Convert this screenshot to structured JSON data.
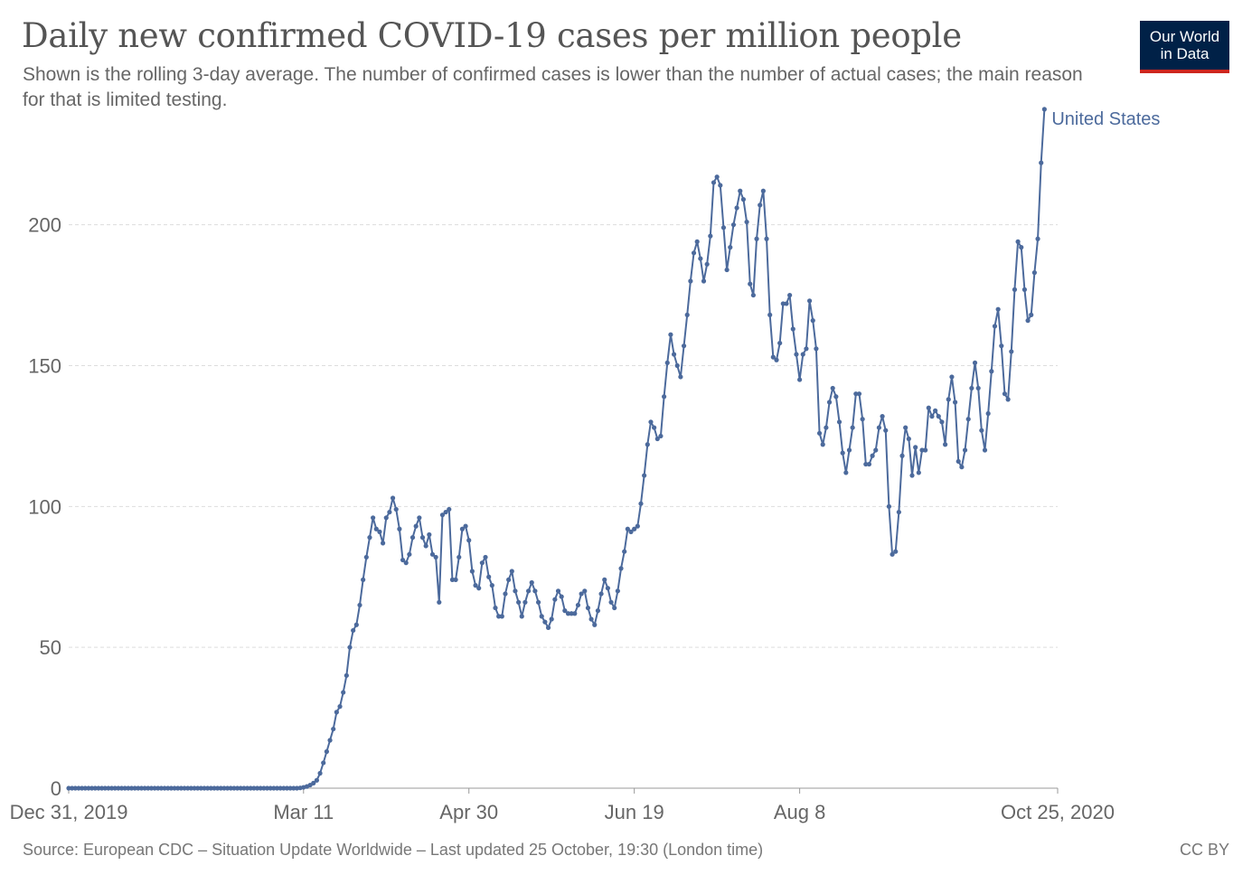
{
  "header": {
    "title": "Daily new confirmed COVID-19 cases per million people",
    "subtitle": "Shown is the rolling 3-day average. The number of confirmed cases is lower than the number of actual cases; the main reason for that is limited testing.",
    "logo_text": "Our World in Data"
  },
  "footer": {
    "source": "Source: European CDC – Situation Update Worldwide – Last updated 25 October, 19:30 (London time)",
    "license": "CC BY"
  },
  "colors": {
    "series": "#4c6a9c",
    "grid": "#dddddd",
    "axis_text": "#666666",
    "logo_bg": "#002147",
    "logo_accent": "#ce261e"
  },
  "chart_data": {
    "type": "line",
    "title": "Daily new confirmed COVID-19 cases per million people",
    "xlabel": "",
    "ylabel": "",
    "x_start": "2019-12-31",
    "x_end": "2020-10-25",
    "xlim": [
      "2019-12-31",
      "2020-10-25"
    ],
    "ylim": [
      0,
      240
    ],
    "y_ticks": [
      0,
      50,
      100,
      150,
      200
    ],
    "x_ticks": [
      {
        "date": "2019-12-31",
        "label": "Dec 31, 2019"
      },
      {
        "date": "2020-03-11",
        "label": "Mar 11"
      },
      {
        "date": "2020-04-30",
        "label": "Apr 30"
      },
      {
        "date": "2020-06-19",
        "label": "Jun 19"
      },
      {
        "date": "2020-08-08",
        "label": "Aug 8"
      },
      {
        "date": "2020-10-25",
        "label": "Oct 25, 2020"
      }
    ],
    "grid": "horizontal dashed",
    "legend": "end-of-line label",
    "series": [
      {
        "name": "United States",
        "start_date": "2019-12-31",
        "values": [
          0,
          0,
          0,
          0,
          0,
          0,
          0,
          0,
          0,
          0,
          0,
          0,
          0,
          0,
          0,
          0,
          0,
          0,
          0,
          0,
          0,
          0,
          0,
          0,
          0,
          0,
          0,
          0,
          0,
          0,
          0,
          0,
          0,
          0,
          0,
          0,
          0,
          0,
          0,
          0,
          0,
          0,
          0,
          0,
          0,
          0,
          0,
          0,
          0,
          0,
          0,
          0,
          0,
          0,
          0,
          0,
          0,
          0,
          0,
          0,
          0,
          0,
          0,
          0,
          0,
          0,
          0,
          0,
          0,
          0,
          0.1,
          0.3,
          0.6,
          1.1,
          1.8,
          2.8,
          5.3,
          9,
          13,
          17,
          21,
          27,
          29,
          34,
          40,
          50,
          56,
          58,
          65,
          74,
          82,
          89,
          96,
          92,
          91,
          87,
          96,
          98,
          103,
          99,
          92,
          81,
          80,
          83,
          89,
          93,
          96,
          89,
          86,
          90,
          83,
          82,
          66,
          97,
          98,
          99,
          74,
          74,
          82,
          92,
          93,
          88,
          77,
          72,
          71,
          80,
          82,
          75,
          72,
          64,
          61,
          61,
          69,
          74,
          77,
          70,
          66,
          61,
          66,
          70,
          73,
          70,
          66,
          61,
          59,
          57,
          60,
          67,
          70,
          68,
          63,
          62,
          62,
          62,
          65,
          69,
          70,
          64,
          60,
          58,
          63,
          69,
          74,
          71,
          66,
          64,
          70,
          78,
          84,
          92,
          91,
          92,
          93,
          101,
          111,
          122,
          130,
          128,
          124,
          125,
          139,
          151,
          161,
          154,
          150,
          146,
          157,
          168,
          180,
          190,
          194,
          188,
          180,
          186,
          196,
          215,
          217,
          214,
          199,
          184,
          192,
          200,
          206,
          212,
          209,
          201,
          179,
          175,
          195,
          207,
          212,
          195,
          168,
          153,
          152,
          158,
          172,
          172,
          175,
          163,
          154,
          145,
          154,
          156,
          173,
          166,
          156,
          126,
          122,
          128,
          137,
          142,
          139,
          130,
          119,
          112,
          120,
          128,
          140,
          140,
          131,
          115,
          115,
          118,
          120,
          128,
          132,
          127,
          100,
          83,
          84,
          98,
          118,
          128,
          124,
          111,
          121,
          112,
          120,
          120,
          135,
          132,
          134,
          132,
          130,
          122,
          138,
          146,
          137,
          116,
          114,
          120,
          131,
          142,
          151,
          142,
          127,
          120,
          133,
          148,
          164,
          170,
          157,
          140,
          138,
          155,
          177,
          194,
          192,
          177,
          166,
          168,
          183,
          195,
          222,
          241
        ]
      }
    ]
  }
}
